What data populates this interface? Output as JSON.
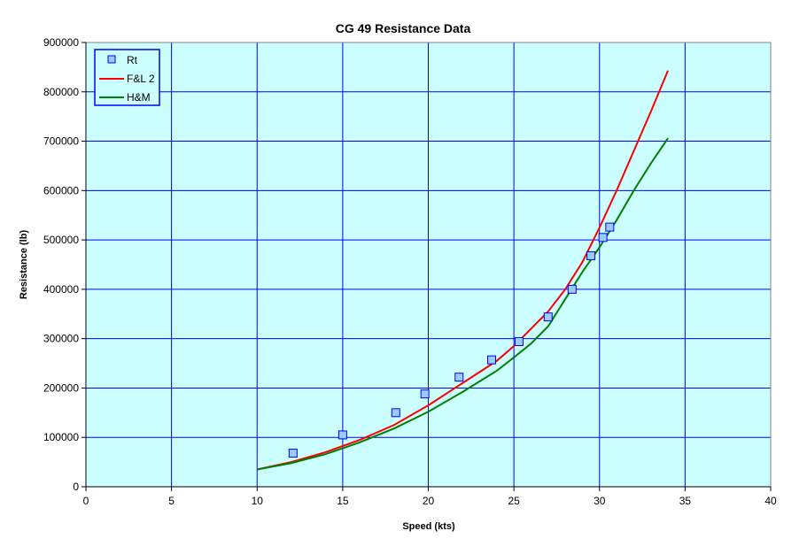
{
  "chart_data": {
    "type": "scatter",
    "title": "CG 49 Resistance Data",
    "xlabel": "Speed (kts)",
    "ylabel": "Resistance (lb)",
    "xlim": [
      0,
      40
    ],
    "ylim": [
      0,
      900000
    ],
    "xticks": [
      0,
      5,
      10,
      15,
      20,
      25,
      30,
      35,
      40
    ],
    "yticks": [
      0,
      100000,
      200000,
      300000,
      400000,
      500000,
      600000,
      700000,
      800000,
      900000
    ],
    "grid": true,
    "legend_position": "top-left",
    "plot_background": "#ccffff",
    "grid_color": "#0000ff",
    "series": [
      {
        "name": "Rt",
        "kind": "markers",
        "color": "#99ccff",
        "x": [
          12.1,
          15.0,
          18.1,
          19.8,
          21.8,
          23.7,
          25.3,
          27.0,
          28.4,
          29.5,
          30.2,
          30.6
        ],
        "y": [
          68000,
          105000,
          150000,
          188000,
          222000,
          257000,
          294000,
          344000,
          400000,
          468000,
          505000,
          526000
        ]
      },
      {
        "name": "F&L 2",
        "kind": "line",
        "color": "#ff0000",
        "x": [
          10,
          12,
          14,
          16,
          18,
          20,
          22,
          24,
          25,
          26,
          27,
          28,
          29,
          30,
          31,
          32,
          33,
          34
        ],
        "y": [
          35000,
          50000,
          70000,
          95000,
          125000,
          165000,
          210000,
          255000,
          285000,
          320000,
          355000,
          400000,
          455000,
          525000,
          600000,
          680000,
          760000,
          843000
        ]
      },
      {
        "name": "H&M",
        "kind": "line",
        "color": "#008000",
        "x": [
          10,
          12,
          14,
          16,
          18,
          20,
          22,
          24,
          25,
          26,
          27,
          28,
          29,
          30,
          31,
          32,
          33,
          34
        ],
        "y": [
          35000,
          48000,
          66000,
          90000,
          118000,
          152000,
          192000,
          235000,
          262000,
          290000,
          325000,
          380000,
          435000,
          485000,
          540000,
          600000,
          655000,
          706000
        ]
      }
    ]
  }
}
